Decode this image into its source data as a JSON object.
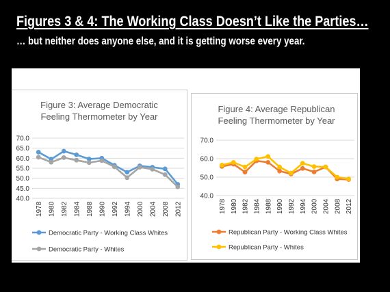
{
  "slide": {
    "title": "Figures 3 & 4: The Working Class Doesn’t Like the Parties…",
    "subtitle": "… but neither does anyone else, and it is getting worse every year."
  },
  "chart_data": [
    {
      "type": "line",
      "title_lines": [
        "Figure 3: Average Democratic",
        "Feeling Thermometer by Year"
      ],
      "x": [
        "1978",
        "1980",
        "1982",
        "1984",
        "1988",
        "1990",
        "1992",
        "1994",
        "2000",
        "2004",
        "2008",
        "2012"
      ],
      "ylim": [
        40,
        70
      ],
      "yticks": [
        "40.0",
        "45.0",
        "50.0",
        "55.0",
        "60.0",
        "65.0",
        "70.0"
      ],
      "grid": true,
      "legend_position": "bottom",
      "series": [
        {
          "name": "Democratic Party - Working Class Whites",
          "color": "#5B9BD5",
          "values": [
            63.0,
            59.5,
            63.5,
            61.7,
            59.6,
            60.0,
            56.5,
            53.0,
            56.2,
            55.5,
            54.7,
            47.0
          ]
        },
        {
          "name": "Democratic Party - Whites",
          "color": "#A5A5A5",
          "values": [
            60.5,
            58.0,
            60.3,
            59.0,
            57.8,
            58.8,
            55.7,
            50.3,
            55.5,
            54.5,
            51.8,
            45.7
          ]
        }
      ]
    },
    {
      "type": "line",
      "title_lines": [
        "Figure 4: Average Republican",
        "Feeling Thermometer by Year"
      ],
      "x": [
        "1978",
        "1980",
        "1982",
        "1984",
        "1988",
        "1990",
        "1992",
        "1994",
        "2000",
        "2004",
        "2008",
        "2012"
      ],
      "ylim": [
        40,
        70
      ],
      "yticks": [
        "40.0",
        "50.0",
        "60.0",
        "70.0"
      ],
      "grid": true,
      "legend_position": "bottom",
      "series": [
        {
          "name": "Republican Party - Working Class Whites",
          "color": "#ED7D31",
          "values": [
            55.8,
            57.0,
            52.7,
            58.8,
            58.0,
            53.3,
            51.7,
            54.7,
            52.8,
            55.5,
            49.0,
            48.7
          ]
        },
        {
          "name": "Republican Party - Whites",
          "color": "#FFC000",
          "values": [
            56.5,
            58.0,
            55.5,
            59.8,
            61.2,
            55.5,
            52.2,
            57.5,
            55.7,
            55.5,
            50.0,
            49.0
          ]
        }
      ]
    }
  ]
}
